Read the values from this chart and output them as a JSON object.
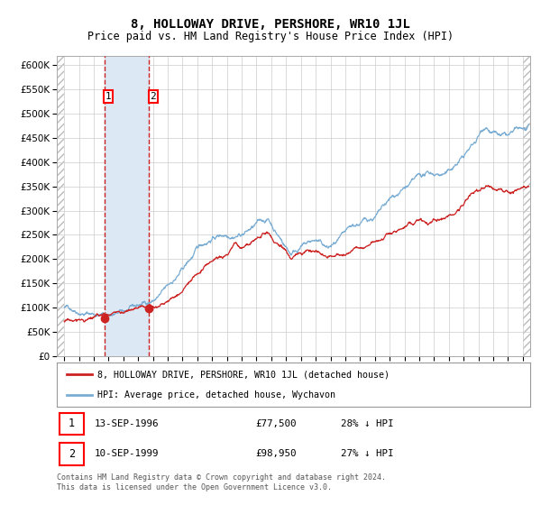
{
  "title": "8, HOLLOWAY DRIVE, PERSHORE, WR10 1JL",
  "subtitle": "Price paid vs. HM Land Registry's House Price Index (HPI)",
  "footer": "Contains HM Land Registry data © Crown copyright and database right 2024.\nThis data is licensed under the Open Government Licence v3.0.",
  "legend_line1": "8, HOLLOWAY DRIVE, PERSHORE, WR10 1JL (detached house)",
  "legend_line2": "HPI: Average price, detached house, Wychavon",
  "transaction1_label": "13-SEP-1996",
  "transaction1_price": "£77,500",
  "transaction1_hpi": "28% ↓ HPI",
  "transaction2_label": "10-SEP-1999",
  "transaction2_price": "£98,950",
  "transaction2_hpi": "27% ↓ HPI",
  "red_line_color": "#cc2222",
  "blue_line_color": "#7aadd4",
  "highlight_color": "#dce9f5",
  "vline_color": "#cc2222",
  "background_color": "#ffffff",
  "grid_color": "#cccccc",
  "ylim": [
    0,
    620000
  ],
  "yticks": [
    0,
    50000,
    100000,
    150000,
    200000,
    250000,
    300000,
    350000,
    400000,
    450000,
    500000,
    550000,
    600000
  ],
  "transaction1_date_num": 1996.71,
  "transaction1_value": 77500,
  "transaction2_date_num": 1999.71,
  "transaction2_value": 98950,
  "xmin": 1993.5,
  "xmax": 2025.5
}
